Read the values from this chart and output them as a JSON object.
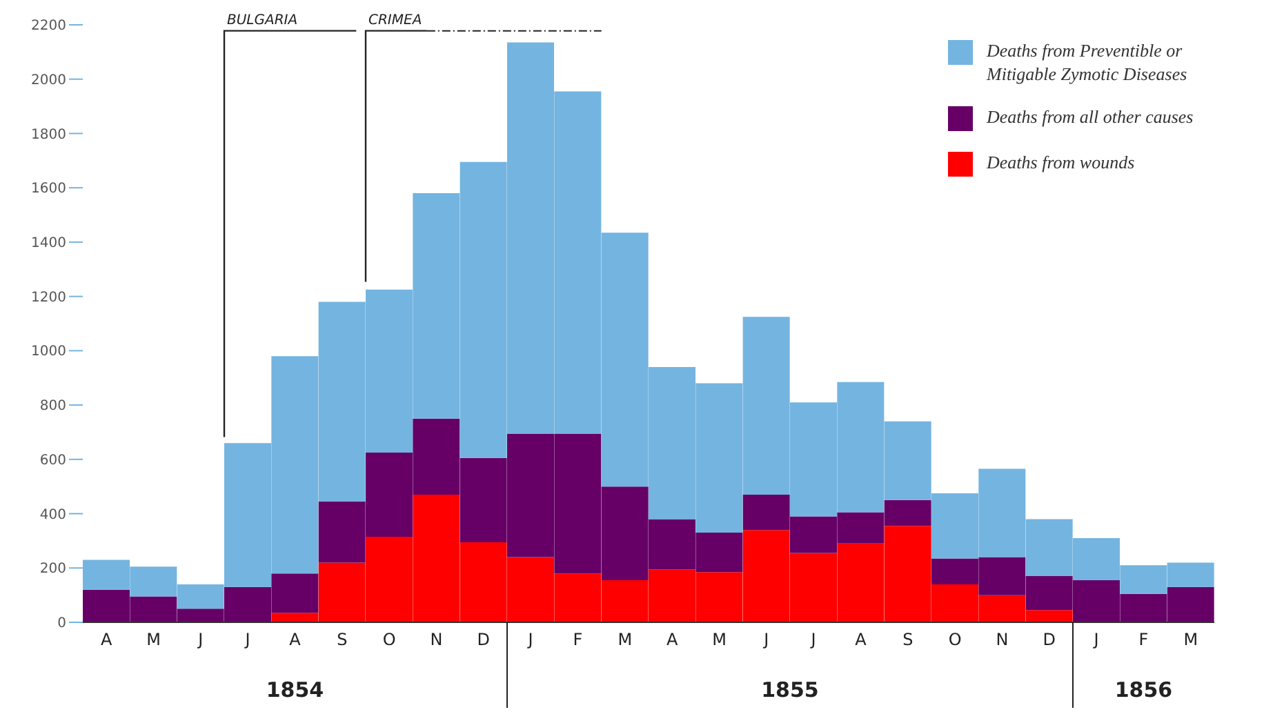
{
  "chart_data": {
    "type": "bar",
    "stacked": true,
    "categories": [
      "A",
      "M",
      "J",
      "J",
      "A",
      "S",
      "O",
      "N",
      "D",
      "J",
      "F",
      "M",
      "A",
      "M",
      "J",
      "J",
      "A",
      "S",
      "O",
      "N",
      "D",
      "J",
      "F",
      "M"
    ],
    "series": [
      {
        "name": "Deaths from wounds",
        "color": "#ff0000",
        "values": [
          0,
          0,
          0,
          0,
          35,
          220,
          315,
          470,
          295,
          240,
          180,
          155,
          195,
          185,
          340,
          255,
          290,
          355,
          140,
          100,
          45,
          0,
          0,
          0
        ]
      },
      {
        "name": "Deaths from all other causes",
        "color": "#660066",
        "values": [
          120,
          95,
          50,
          130,
          145,
          225,
          310,
          280,
          310,
          455,
          515,
          345,
          185,
          145,
          130,
          135,
          115,
          95,
          95,
          140,
          125,
          155,
          105,
          130
        ]
      },
      {
        "name": "Deaths from Preventible or Mitigable Zymotic Diseases",
        "color": "#74b4e0",
        "values": [
          110,
          110,
          90,
          530,
          800,
          735,
          600,
          830,
          1090,
          1440,
          1260,
          935,
          560,
          550,
          655,
          420,
          480,
          290,
          240,
          325,
          210,
          155,
          105,
          90
        ]
      }
    ],
    "ylim": [
      0,
      2200
    ],
    "yticks": [
      0,
      200,
      400,
      600,
      800,
      1000,
      1200,
      1400,
      1600,
      1800,
      2000,
      2200
    ],
    "grid": false,
    "legend": "top right",
    "annotations": [
      "BULGARIA",
      "CRIMEA",
      "1854",
      "1855",
      "1856"
    ]
  }
}
